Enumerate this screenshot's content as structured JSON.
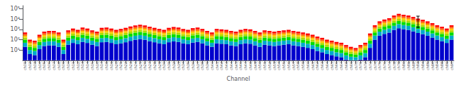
{
  "chart_data": {
    "type": "bar",
    "xlabel": "Channel",
    "stacked": true,
    "log": "y",
    "grid": false,
    "background_color": "#ffffff",
    "categories": [
      "ch01",
      "ch02",
      "ch03",
      "ch04",
      "ch05",
      "ch06",
      "ch07",
      "ch08",
      "ch09",
      "ch10",
      "ch11",
      "ch12",
      "ch13",
      "ch14",
      "ch15",
      "ch16",
      "ch17",
      "ch18",
      "ch19",
      "ch20",
      "ch21",
      "ch22",
      "ch23",
      "ch24",
      "ch25",
      "ch26",
      "ch27",
      "ch28",
      "ch29",
      "ch30",
      "ch31",
      "ch32",
      "ch33",
      "ch34",
      "ch35",
      "ch36",
      "ch37",
      "ch38",
      "ch39",
      "ch40",
      "ch41",
      "ch42",
      "ch43",
      "ch44",
      "ch45",
      "ch46",
      "ch47",
      "ch48",
      "ch49",
      "ch50",
      "ch51",
      "ch52",
      "ch53",
      "ch54",
      "ch55",
      "ch56",
      "ch57",
      "ch58",
      "ch59",
      "ch60",
      "ch61",
      "ch62",
      "ch63",
      "ch64",
      "ch65",
      "ch66",
      "ch67",
      "ch68",
      "ch69",
      "ch70",
      "ch71",
      "ch72",
      "ch73",
      "ch74",
      "ch75",
      "ch76",
      "ch77",
      "ch78",
      "ch79",
      "ch80",
      "ch81",
      "ch82",
      "ch83",
      "ch84",
      "ch85",
      "ch86",
      "ch87",
      "ch88",
      "ch89",
      "ch90"
    ],
    "series": [
      {
        "color": "#0000cc",
        "values": [
          20,
          4,
          3.2,
          12,
          24,
          28,
          28,
          20,
          4,
          32,
          48,
          36,
          60,
          48,
          32,
          24,
          56,
          60,
          48,
          36,
          44,
          56,
          76,
          96,
          112,
          96,
          72,
          56,
          44,
          36,
          56,
          68,
          60,
          44,
          36,
          52,
          60,
          44,
          28,
          20,
          44,
          40,
          36,
          28,
          24,
          36,
          44,
          40,
          28,
          20,
          32,
          28,
          24,
          28,
          32,
          36,
          28,
          24,
          20,
          16,
          12,
          8,
          6,
          4,
          3.2,
          2.4,
          2,
          1.2,
          1,
          1,
          1.2,
          2,
          16,
          100,
          240,
          360,
          480,
          880,
          1280,
          1040,
          880,
          640,
          440,
          340,
          240,
          160,
          100,
          72,
          48,
          100
        ]
      },
      {
        "color": "#00aacc",
        "values": [
          30,
          6,
          4.8,
          18,
          36,
          42,
          42,
          30,
          6,
          48,
          72,
          54,
          90,
          72,
          48,
          36,
          84,
          90,
          72,
          54,
          66,
          84,
          114,
          144,
          168,
          144,
          108,
          84,
          66,
          54,
          84,
          102,
          90,
          66,
          54,
          78,
          90,
          66,
          42,
          30,
          66,
          60,
          54,
          42,
          36,
          54,
          66,
          60,
          42,
          30,
          48,
          42,
          36,
          42,
          48,
          54,
          42,
          36,
          30,
          24,
          18,
          12,
          9,
          6,
          4.8,
          3.6,
          3,
          1.8,
          1.2,
          1,
          1.8,
          3,
          24,
          150,
          360,
          540,
          720,
          1320,
          1920,
          1560,
          1320,
          960,
          660,
          510,
          360,
          240,
          150,
          108,
          72,
          150
        ]
      },
      {
        "color": "#00dd00",
        "values": [
          50,
          10,
          8,
          30,
          60,
          70,
          70,
          50,
          10,
          80,
          120,
          90,
          150,
          120,
          80,
          60,
          140,
          150,
          120,
          90,
          110,
          140,
          190,
          240,
          280,
          240,
          180,
          140,
          110,
          90,
          140,
          170,
          150,
          110,
          90,
          130,
          150,
          110,
          70,
          50,
          110,
          100,
          90,
          70,
          60,
          90,
          110,
          100,
          70,
          50,
          80,
          70,
          60,
          70,
          80,
          90,
          70,
          60,
          50,
          40,
          30,
          20,
          15,
          10,
          8,
          6,
          5,
          3,
          2,
          1.5,
          3,
          5,
          40,
          250,
          600,
          900,
          1200,
          2200,
          3200,
          2600,
          2200,
          1600,
          1100,
          850,
          600,
          400,
          250,
          180,
          120,
          250
        ]
      },
      {
        "color": "#aadd00",
        "values": [
          60,
          12,
          9.6,
          36,
          72,
          84,
          84,
          60,
          12,
          96,
          144,
          108,
          180,
          144,
          96,
          72,
          168,
          180,
          144,
          108,
          132,
          168,
          228,
          288,
          336,
          288,
          216,
          168,
          132,
          108,
          168,
          204,
          180,
          132,
          108,
          156,
          180,
          132,
          84,
          60,
          132,
          120,
          108,
          84,
          72,
          108,
          132,
          120,
          84,
          60,
          96,
          84,
          72,
          84,
          96,
          108,
          84,
          72,
          60,
          48,
          36,
          24,
          18,
          12,
          9.6,
          7.2,
          6,
          3.6,
          2.4,
          1.8,
          3.6,
          6,
          48,
          300,
          720,
          1080,
          1440,
          2640,
          3840,
          3120,
          2640,
          1920,
          1320,
          1020,
          720,
          480,
          300,
          216,
          144,
          300
        ]
      },
      {
        "color": "#ffcc00",
        "values": [
          80,
          16,
          12.8,
          48,
          96,
          112,
          112,
          80,
          16,
          128,
          192,
          144,
          240,
          192,
          128,
          96,
          224,
          240,
          192,
          144,
          176,
          224,
          304,
          384,
          448,
          384,
          288,
          224,
          176,
          144,
          224,
          272,
          240,
          176,
          144,
          208,
          240,
          176,
          112,
          80,
          176,
          160,
          144,
          112,
          96,
          144,
          176,
          160,
          112,
          80,
          128,
          112,
          96,
          112,
          128,
          144,
          112,
          96,
          80,
          64,
          48,
          32,
          24,
          16,
          12.8,
          9.6,
          8,
          4.8,
          3.2,
          2.4,
          4.8,
          8,
          64,
          400,
          960,
          1440,
          1920,
          3520,
          5120,
          4160,
          3520,
          2560,
          1760,
          1360,
          960,
          640,
          400,
          288,
          192,
          400
        ]
      },
      {
        "color": "#ff6600",
        "values": [
          100,
          20,
          16,
          60,
          120,
          140,
          140,
          100,
          20,
          160,
          240,
          180,
          300,
          240,
          160,
          120,
          280,
          300,
          240,
          180,
          220,
          280,
          380,
          480,
          560,
          480,
          360,
          280,
          220,
          180,
          280,
          340,
          300,
          220,
          180,
          260,
          300,
          220,
          140,
          100,
          220,
          200,
          180,
          140,
          120,
          180,
          220,
          200,
          140,
          100,
          160,
          140,
          120,
          140,
          160,
          180,
          140,
          120,
          100,
          80,
          60,
          40,
          30,
          20,
          16,
          12,
          10,
          6,
          4,
          3,
          6,
          10,
          80,
          500,
          1200,
          1800,
          2400,
          4400,
          6400,
          5200,
          4400,
          3200,
          2200,
          1700,
          1200,
          800,
          500,
          360,
          240,
          500
        ]
      },
      {
        "color": "#ff0000",
        "values": [
          160,
          32,
          25.6,
          96,
          192,
          224,
          224,
          160,
          32,
          256,
          384,
          288,
          480,
          384,
          256,
          192,
          448,
          480,
          384,
          288,
          352,
          448,
          608,
          768,
          896,
          768,
          576,
          448,
          352,
          288,
          448,
          544,
          480,
          352,
          288,
          416,
          480,
          352,
          224,
          160,
          352,
          320,
          288,
          224,
          192,
          288,
          352,
          320,
          224,
          160,
          256,
          224,
          192,
          224,
          256,
          288,
          224,
          192,
          160,
          128,
          96,
          64,
          48,
          32,
          25.6,
          19.2,
          16,
          9.6,
          6.4,
          4.8,
          9.6,
          16,
          128,
          800,
          1920,
          2880,
          3840,
          7040,
          10240,
          8320,
          7040,
          5120,
          3520,
          2720,
          1920,
          1280,
          800,
          576,
          384,
          800
        ]
      }
    ],
    "ylim": [
      1,
      200000
    ],
    "yticks": [
      {
        "value": 10,
        "label": "10¹"
      },
      {
        "value": 100,
        "label": "10²"
      },
      {
        "value": 1000,
        "label": "10³"
      },
      {
        "value": 10000,
        "label": "10⁴"
      },
      {
        "value": 100000,
        "label": "10⁵"
      }
    ],
    "errorbar": {
      "category": "ch83",
      "value": 4000,
      "lower": 2500,
      "upper": 15000,
      "color": "#000000"
    }
  }
}
